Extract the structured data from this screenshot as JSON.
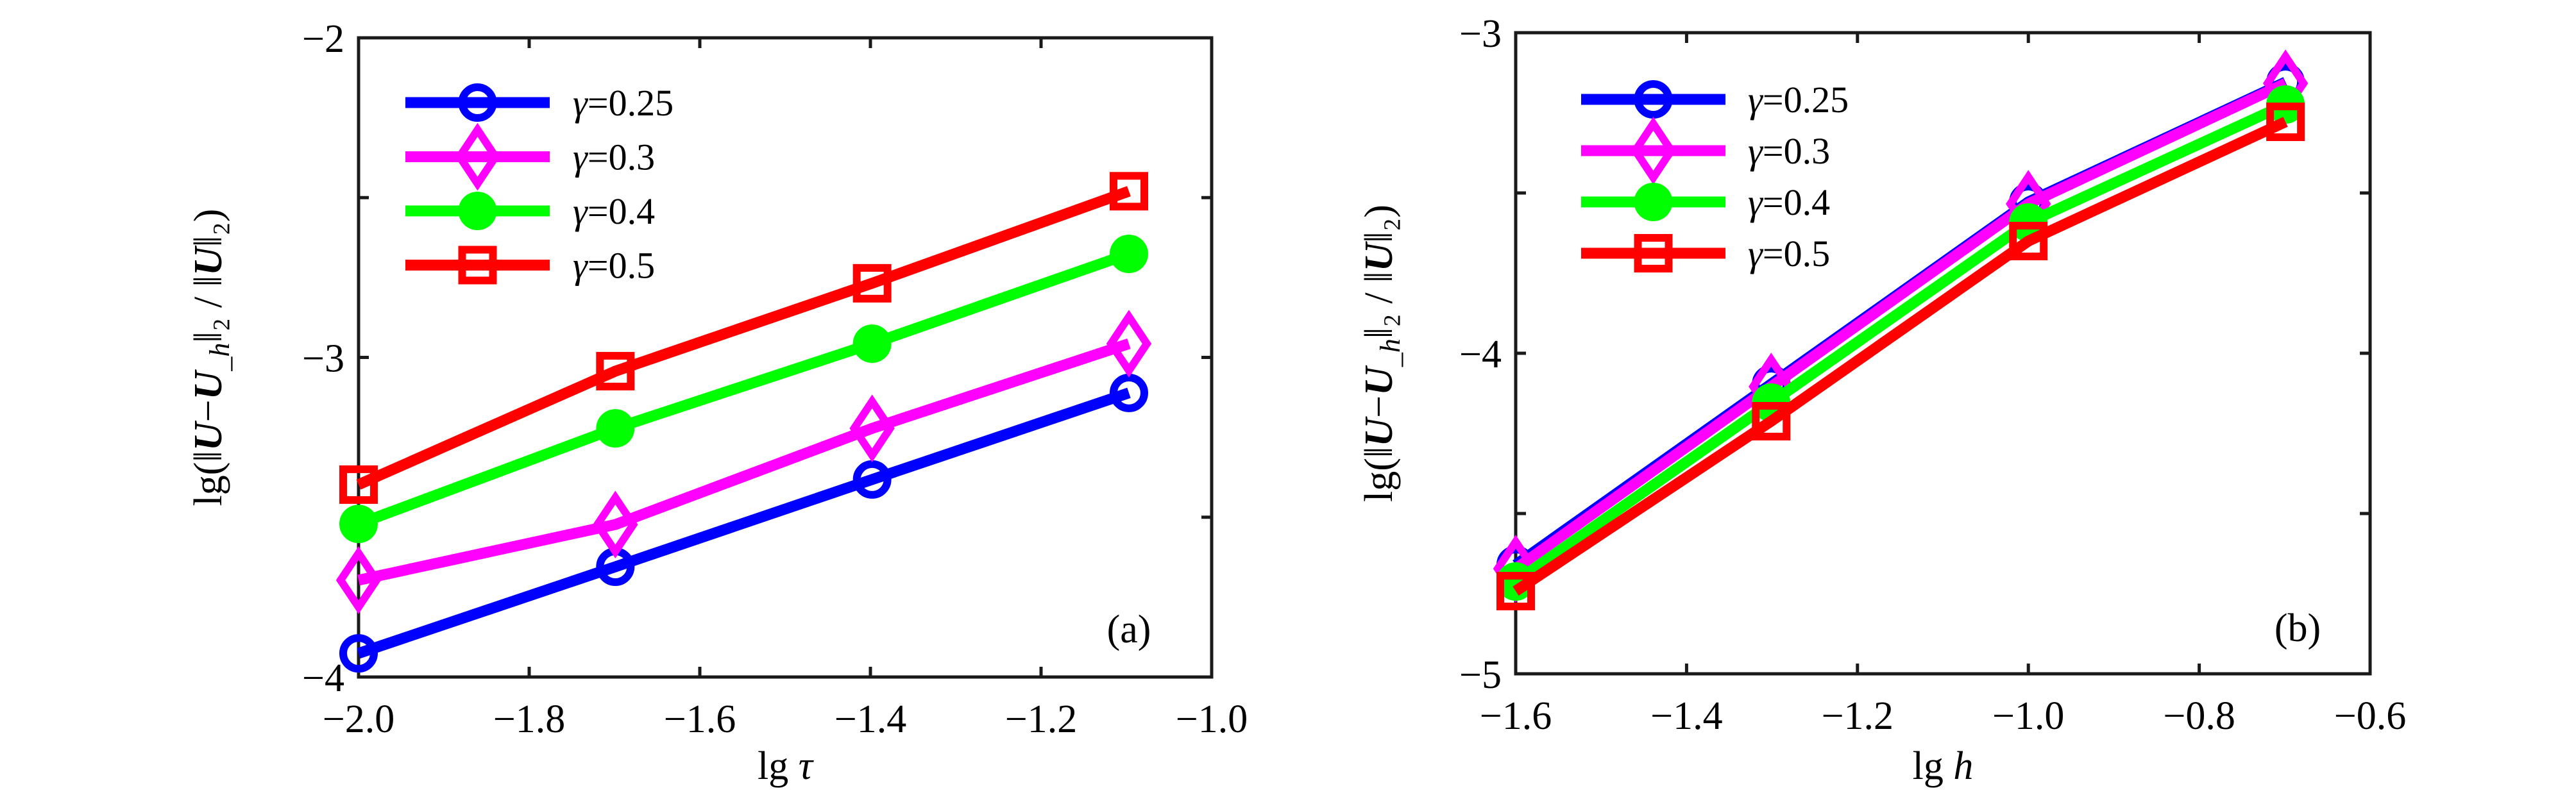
{
  "chart_data": [
    {
      "type": "line",
      "panel_label": "(a)",
      "xlabel": "lg τ",
      "xlabel_parts": {
        "prefix": "lg ",
        "var": "τ"
      },
      "ylabel": "lg(‖U−U_h‖₂ / ‖U‖₂)",
      "xlim": [
        -2.0,
        -1.0
      ],
      "ylim": [
        -4,
        -2
      ],
      "xticks": [
        -2.0,
        -1.8,
        -1.6,
        -1.4,
        -1.2,
        -1.0
      ],
      "xtick_labels": [
        "−2.0",
        "−1.8",
        "−1.6",
        "−1.4",
        "−1.2",
        "−1.0"
      ],
      "yticks": [
        -4,
        -3.5,
        -3,
        -2.5,
        -2
      ],
      "ytick_labels": [
        "−4",
        "",
        "−3",
        "",
        "−2"
      ],
      "grid": false,
      "legend_position": "top-left",
      "x": [
        -2.0,
        -1.699,
        -1.398,
        -1.097
      ],
      "series": [
        {
          "name": "γ=0.25",
          "color": "#0000ff",
          "marker": "open-circle",
          "values": [
            -3.926,
            -3.655,
            -3.382,
            -3.111
          ]
        },
        {
          "name": "γ=0.3",
          "color": "#ff00ff",
          "marker": "open-diamond",
          "values": [
            -3.697,
            -3.523,
            -3.222,
            -2.957
          ]
        },
        {
          "name": "γ=0.4",
          "color": "#00ff00",
          "marker": "filled-circle",
          "values": [
            -3.521,
            -3.222,
            -2.957,
            -2.676
          ]
        },
        {
          "name": "γ=0.5",
          "color": "#ff0000",
          "marker": "open-square",
          "values": [
            -3.398,
            -3.043,
            -2.768,
            -2.48
          ]
        }
      ]
    },
    {
      "type": "line",
      "panel_label": "(b)",
      "xlabel": "lg h",
      "xlabel_parts": {
        "prefix": "lg ",
        "var": "h"
      },
      "ylabel": "lg(‖U−U_h‖₂ / ‖U‖₂)",
      "xlim": [
        -1.6,
        -0.6
      ],
      "ylim": [
        -5,
        -3
      ],
      "xticks": [
        -1.6,
        -1.4,
        -1.2,
        -1.0,
        -0.8,
        -0.6
      ],
      "xtick_labels": [
        "−1.6",
        "−1.4",
        "−1.2",
        "−1.0",
        "−0.8",
        "−0.6"
      ],
      "yticks": [
        -5,
        -4.5,
        -4,
        -3.5,
        -3
      ],
      "ytick_labels": [
        "−5",
        "",
        "−4",
        "",
        "−3"
      ],
      "grid": false,
      "legend_position": "top-left",
      "x": [
        -1.6,
        -1.301,
        -1.0,
        -0.699
      ],
      "series": [
        {
          "name": "γ=0.25",
          "color": "#0000ff",
          "marker": "open-circle",
          "values": [
            -4.66,
            -4.096,
            -3.528,
            -3.154
          ]
        },
        {
          "name": "γ=0.3",
          "color": "#ff00ff",
          "marker": "open-diamond",
          "values": [
            -4.672,
            -4.104,
            -3.534,
            -3.158
          ]
        },
        {
          "name": "γ=0.4",
          "color": "#00ff00",
          "marker": "filled-circle",
          "values": [
            -4.712,
            -4.154,
            -3.592,
            -3.224
          ]
        },
        {
          "name": "γ=0.5",
          "color": "#ff0000",
          "marker": "open-square",
          "values": [
            -4.742,
            -4.212,
            -3.65,
            -3.278
          ]
        }
      ]
    }
  ]
}
